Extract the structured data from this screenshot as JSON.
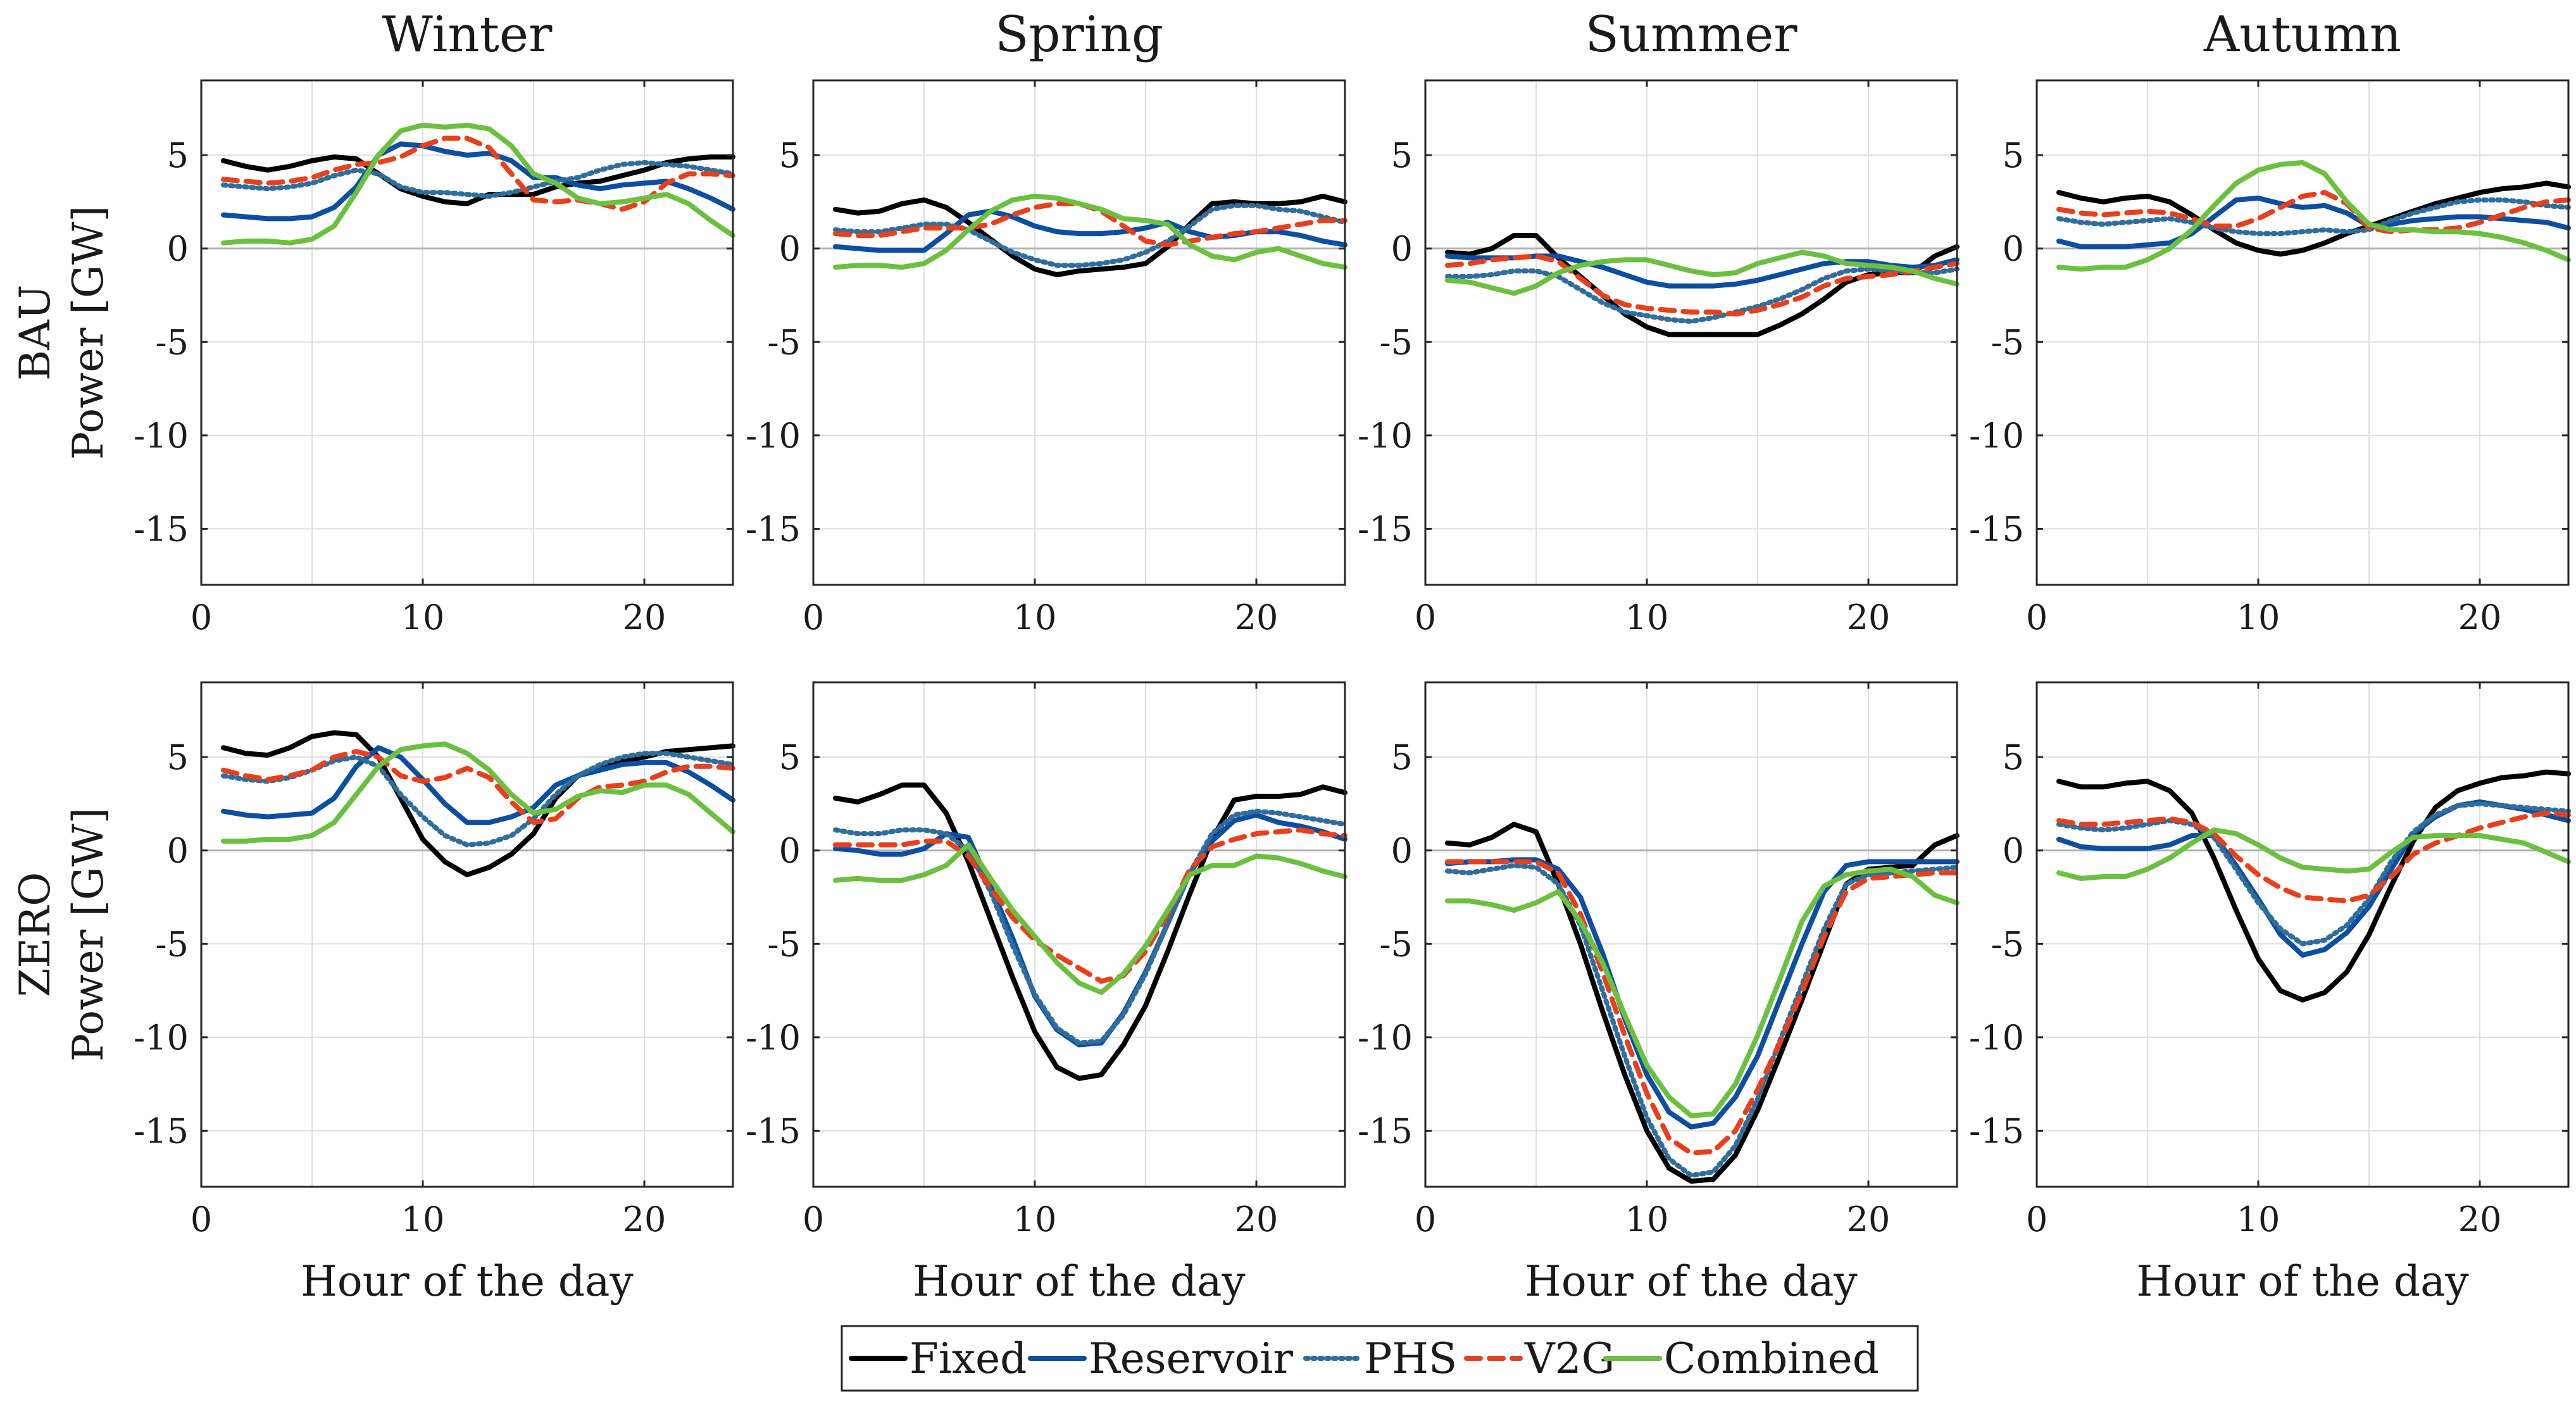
{
  "legend": {
    "items": [
      {
        "name": "Fixed",
        "color": "#000000",
        "style": "solid"
      },
      {
        "name": "Reservoir",
        "color": "#0b4ea2",
        "style": "solid"
      },
      {
        "name": "PHS",
        "color": "#2f6e9c",
        "style": "dotted"
      },
      {
        "name": "V2G",
        "color": "#e8401c",
        "style": "dashed"
      },
      {
        "name": "Combined",
        "color": "#6cc040",
        "style": "solid"
      }
    ]
  },
  "chart_data": {
    "type": "line",
    "seasons": [
      "Winter",
      "Spring",
      "Summer",
      "Autumn"
    ],
    "rows": [
      "BAU",
      "ZERO"
    ],
    "ylabel": "Power [GW]",
    "xlabel": "Hour of the day",
    "xlim": [
      0,
      24
    ],
    "ylim": [
      -18,
      9
    ],
    "xticks": [
      0,
      10,
      20
    ],
    "yticks": [
      5,
      0,
      -5,
      -10,
      -15
    ],
    "series_names": [
      "Fixed",
      "Reservoir",
      "PHS",
      "V2G",
      "Combined"
    ],
    "x": [
      1,
      2,
      3,
      4,
      5,
      6,
      7,
      8,
      9,
      10,
      11,
      12,
      13,
      14,
      15,
      16,
      17,
      18,
      19,
      20,
      21,
      22,
      23,
      24
    ],
    "panels": [
      {
        "row": "BAU",
        "season": "Winter",
        "series": [
          [
            4.7,
            4.4,
            4.2,
            4.4,
            4.7,
            4.9,
            4.8,
            4.0,
            3.2,
            2.8,
            2.5,
            2.4,
            2.9,
            2.9,
            2.9,
            3.3,
            3.5,
            3.6,
            3.9,
            4.2,
            4.6,
            4.8,
            4.9,
            4.9
          ],
          [
            1.8,
            1.7,
            1.6,
            1.6,
            1.7,
            2.2,
            3.3,
            5.0,
            5.6,
            5.5,
            5.2,
            5.0,
            5.1,
            4.7,
            3.8,
            3.8,
            3.4,
            3.2,
            3.4,
            3.5,
            3.6,
            3.2,
            2.7,
            2.1
          ],
          [
            3.4,
            3.3,
            3.2,
            3.3,
            3.5,
            3.9,
            4.2,
            4.0,
            3.3,
            3.0,
            3.0,
            2.9,
            2.8,
            3.0,
            3.3,
            3.6,
            3.8,
            4.2,
            4.5,
            4.6,
            4.5,
            4.4,
            4.2,
            4.0
          ],
          [
            3.7,
            3.6,
            3.5,
            3.6,
            3.8,
            4.2,
            4.5,
            4.6,
            4.9,
            5.5,
            5.9,
            5.9,
            5.4,
            4.0,
            2.6,
            2.5,
            2.6,
            2.4,
            2.1,
            2.5,
            3.5,
            4.0,
            4.0,
            3.9
          ],
          [
            0.3,
            0.4,
            0.4,
            0.3,
            0.5,
            1.2,
            3.0,
            5.0,
            6.3,
            6.6,
            6.5,
            6.6,
            6.4,
            5.5,
            4.0,
            3.5,
            2.7,
            2.4,
            2.5,
            2.7,
            2.9,
            2.4,
            1.5,
            0.7
          ]
        ]
      },
      {
        "row": "BAU",
        "season": "Spring",
        "series": [
          [
            2.1,
            1.9,
            2.0,
            2.4,
            2.6,
            2.2,
            1.4,
            0.5,
            -0.4,
            -1.1,
            -1.4,
            -1.2,
            -1.1,
            -1.0,
            -0.8,
            0.1,
            1.3,
            2.4,
            2.5,
            2.4,
            2.4,
            2.5,
            2.8,
            2.5
          ],
          [
            0.1,
            0.0,
            -0.1,
            -0.1,
            -0.1,
            0.8,
            1.8,
            2.0,
            1.7,
            1.2,
            0.9,
            0.8,
            0.8,
            0.9,
            1.1,
            1.4,
            0.9,
            0.6,
            0.7,
            0.9,
            0.9,
            0.7,
            0.4,
            0.2
          ],
          [
            1.0,
            0.9,
            0.9,
            1.1,
            1.3,
            1.3,
            1.0,
            0.4,
            -0.2,
            -0.6,
            -0.9,
            -0.9,
            -0.8,
            -0.6,
            -0.2,
            0.4,
            1.2,
            2.1,
            2.3,
            2.3,
            2.1,
            2.0,
            1.7,
            1.4
          ],
          [
            0.8,
            0.7,
            0.7,
            0.9,
            1.1,
            1.1,
            1.1,
            1.3,
            1.8,
            2.2,
            2.4,
            2.4,
            2.0,
            1.2,
            0.4,
            0.2,
            0.4,
            0.6,
            0.8,
            0.9,
            1.1,
            1.3,
            1.5,
            1.5
          ],
          [
            -1.0,
            -0.9,
            -0.9,
            -1.0,
            -0.8,
            -0.1,
            1.0,
            2.0,
            2.6,
            2.8,
            2.7,
            2.4,
            2.1,
            1.6,
            1.5,
            1.3,
            0.2,
            -0.4,
            -0.6,
            -0.2,
            0.0,
            -0.4,
            -0.8,
            -1.0
          ]
        ]
      },
      {
        "row": "BAU",
        "season": "Summer",
        "series": [
          [
            -0.2,
            -0.3,
            0.0,
            0.7,
            0.7,
            -0.5,
            -1.5,
            -2.5,
            -3.5,
            -4.2,
            -4.6,
            -4.6,
            -4.6,
            -4.6,
            -4.6,
            -4.1,
            -3.5,
            -2.7,
            -1.8,
            -1.4,
            -1.3,
            -1.3,
            -0.4,
            0.1
          ],
          [
            -0.4,
            -0.5,
            -0.5,
            -0.5,
            -0.4,
            -0.4,
            -0.7,
            -1.0,
            -1.4,
            -1.8,
            -2.0,
            -2.0,
            -2.0,
            -1.9,
            -1.7,
            -1.4,
            -1.1,
            -0.8,
            -0.7,
            -0.7,
            -0.9,
            -1.0,
            -0.9,
            -0.6
          ],
          [
            -1.5,
            -1.5,
            -1.4,
            -1.2,
            -1.2,
            -1.5,
            -2.2,
            -2.9,
            -3.4,
            -3.6,
            -3.8,
            -3.9,
            -3.7,
            -3.4,
            -3.1,
            -2.7,
            -2.2,
            -1.6,
            -1.2,
            -1.1,
            -1.2,
            -1.3,
            -1.3,
            -1.1
          ],
          [
            -0.9,
            -0.8,
            -0.6,
            -0.5,
            -0.4,
            -0.7,
            -1.6,
            -2.5,
            -3.0,
            -3.2,
            -3.3,
            -3.4,
            -3.4,
            -3.5,
            -3.3,
            -3.0,
            -2.6,
            -2.0,
            -1.6,
            -1.5,
            -1.4,
            -1.2,
            -1.0,
            -0.8
          ],
          [
            -1.7,
            -1.8,
            -2.1,
            -2.4,
            -2.0,
            -1.3,
            -0.9,
            -0.7,
            -0.6,
            -0.6,
            -0.9,
            -1.2,
            -1.4,
            -1.3,
            -0.8,
            -0.5,
            -0.2,
            -0.4,
            -0.8,
            -0.9,
            -1.0,
            -1.2,
            -1.6,
            -1.9
          ]
        ]
      },
      {
        "row": "BAU",
        "season": "Autumn",
        "series": [
          [
            3.0,
            2.7,
            2.5,
            2.7,
            2.8,
            2.5,
            1.8,
            1.0,
            0.3,
            -0.1,
            -0.3,
            -0.1,
            0.3,
            0.8,
            1.2,
            1.6,
            2.0,
            2.4,
            2.7,
            3.0,
            3.2,
            3.3,
            3.5,
            3.3
          ],
          [
            0.4,
            0.1,
            0.1,
            0.1,
            0.2,
            0.3,
            0.8,
            1.7,
            2.6,
            2.7,
            2.4,
            2.2,
            2.3,
            1.9,
            1.2,
            1.3,
            1.5,
            1.6,
            1.7,
            1.7,
            1.6,
            1.5,
            1.4,
            1.1
          ],
          [
            1.6,
            1.4,
            1.3,
            1.4,
            1.5,
            1.6,
            1.4,
            1.1,
            0.9,
            0.8,
            0.8,
            0.9,
            1.0,
            0.9,
            1.0,
            1.5,
            1.9,
            2.2,
            2.5,
            2.6,
            2.6,
            2.5,
            2.3,
            2.2
          ],
          [
            2.1,
            1.9,
            1.8,
            1.9,
            2.0,
            1.9,
            1.6,
            1.2,
            1.2,
            1.6,
            2.2,
            2.8,
            3.0,
            2.4,
            1.1,
            0.9,
            1.0,
            1.0,
            1.1,
            1.4,
            1.8,
            2.2,
            2.5,
            2.6
          ],
          [
            -1.0,
            -1.1,
            -1.0,
            -1.0,
            -0.6,
            0.0,
            1.0,
            2.3,
            3.5,
            4.2,
            4.5,
            4.6,
            4.0,
            2.5,
            1.3,
            1.0,
            1.0,
            0.9,
            0.9,
            0.8,
            0.6,
            0.3,
            -0.1,
            -0.6
          ]
        ]
      },
      {
        "row": "ZERO",
        "season": "Winter",
        "series": [
          [
            5.5,
            5.2,
            5.1,
            5.5,
            6.1,
            6.3,
            6.2,
            5.0,
            2.8,
            0.6,
            -0.6,
            -1.3,
            -0.9,
            -0.2,
            0.9,
            2.8,
            4.0,
            4.5,
            4.8,
            5.0,
            5.3,
            5.4,
            5.5,
            5.6
          ],
          [
            2.1,
            1.9,
            1.8,
            1.9,
            2.0,
            2.8,
            4.5,
            5.5,
            5.0,
            3.8,
            2.5,
            1.5,
            1.5,
            1.8,
            2.3,
            3.5,
            4.0,
            4.3,
            4.6,
            4.7,
            4.7,
            4.2,
            3.5,
            2.7
          ],
          [
            4.0,
            3.8,
            3.7,
            3.9,
            4.3,
            4.8,
            5.0,
            4.5,
            3.0,
            1.8,
            0.8,
            0.3,
            0.4,
            0.8,
            1.7,
            3.0,
            4.0,
            4.6,
            5.0,
            5.2,
            5.2,
            5.0,
            4.8,
            4.6
          ],
          [
            4.3,
            4.0,
            3.8,
            4.0,
            4.3,
            5.0,
            5.3,
            5.0,
            4.0,
            3.7,
            3.9,
            4.4,
            3.9,
            2.6,
            1.5,
            1.7,
            2.8,
            3.4,
            3.5,
            3.7,
            4.2,
            4.5,
            4.5,
            4.4
          ],
          [
            0.5,
            0.5,
            0.6,
            0.6,
            0.8,
            1.5,
            3.0,
            4.5,
            5.4,
            5.6,
            5.7,
            5.2,
            4.3,
            3.0,
            2.0,
            2.2,
            2.9,
            3.2,
            3.1,
            3.5,
            3.5,
            3.0,
            2.0,
            1.0
          ]
        ]
      },
      {
        "row": "ZERO",
        "season": "Spring",
        "series": [
          [
            2.8,
            2.6,
            3.0,
            3.5,
            3.5,
            2.0,
            -0.6,
            -3.7,
            -6.8,
            -9.7,
            -11.6,
            -12.2,
            -12.0,
            -10.4,
            -8.3,
            -5.4,
            -2.3,
            0.6,
            2.7,
            2.9,
            2.9,
            3.0,
            3.4,
            3.1
          ],
          [
            0.1,
            0.0,
            -0.2,
            -0.2,
            0.1,
            0.9,
            0.7,
            -1.9,
            -4.7,
            -7.8,
            -9.6,
            -10.4,
            -10.3,
            -8.7,
            -6.5,
            -3.9,
            -1.2,
            0.5,
            1.6,
            1.9,
            1.5,
            1.3,
            1.0,
            0.6
          ],
          [
            1.1,
            0.9,
            0.9,
            1.1,
            1.1,
            0.9,
            0.0,
            -2.2,
            -5.1,
            -7.7,
            -9.5,
            -10.3,
            -10.2,
            -8.8,
            -6.6,
            -3.9,
            -1.2,
            0.9,
            1.9,
            2.1,
            2.0,
            1.8,
            1.6,
            1.4
          ],
          [
            0.3,
            0.3,
            0.3,
            0.3,
            0.5,
            0.5,
            -0.3,
            -2.0,
            -3.6,
            -4.8,
            -5.6,
            -6.3,
            -7.0,
            -6.7,
            -5.4,
            -3.4,
            -1.0,
            0.2,
            0.6,
            0.9,
            1.0,
            1.1,
            0.9,
            0.8
          ],
          [
            -1.6,
            -1.5,
            -1.6,
            -1.6,
            -1.3,
            -0.8,
            0.3,
            -1.5,
            -3.2,
            -4.6,
            -6.0,
            -7.1,
            -7.6,
            -6.6,
            -5.1,
            -3.2,
            -1.3,
            -0.8,
            -0.8,
            -0.3,
            -0.4,
            -0.7,
            -1.1,
            -1.4
          ]
        ]
      },
      {
        "row": "ZERO",
        "season": "Summer",
        "series": [
          [
            0.4,
            0.3,
            0.7,
            1.4,
            1.0,
            -1.8,
            -5.0,
            -8.6,
            -12.0,
            -15.0,
            -17.0,
            -17.7,
            -17.6,
            -16.3,
            -13.9,
            -11.0,
            -8.0,
            -4.9,
            -1.8,
            -1.0,
            -0.9,
            -0.8,
            0.3,
            0.8
          ],
          [
            -0.7,
            -0.6,
            -0.6,
            -0.5,
            -0.5,
            -1.0,
            -2.5,
            -5.5,
            -9.0,
            -12.0,
            -14.0,
            -14.8,
            -14.6,
            -13.2,
            -11.0,
            -8.0,
            -5.0,
            -2.2,
            -0.8,
            -0.6,
            -0.6,
            -0.6,
            -0.6,
            -0.6
          ],
          [
            -1.1,
            -1.2,
            -1.0,
            -0.8,
            -0.9,
            -1.8,
            -4.0,
            -7.5,
            -11.0,
            -14.3,
            -16.5,
            -17.4,
            -17.2,
            -15.8,
            -13.3,
            -10.2,
            -7.2,
            -4.2,
            -1.8,
            -1.3,
            -1.2,
            -1.1,
            -1.0,
            -0.9
          ],
          [
            -0.6,
            -0.6,
            -0.6,
            -0.6,
            -0.6,
            -1.2,
            -3.4,
            -6.5,
            -9.9,
            -13.0,
            -15.4,
            -16.2,
            -16.1,
            -15.0,
            -12.8,
            -10.3,
            -7.6,
            -4.6,
            -2.2,
            -1.5,
            -1.4,
            -1.3,
            -1.2,
            -1.2
          ],
          [
            -2.7,
            -2.7,
            -2.9,
            -3.2,
            -2.8,
            -2.2,
            -3.8,
            -6.0,
            -8.8,
            -11.5,
            -13.2,
            -14.2,
            -14.1,
            -12.5,
            -9.9,
            -6.9,
            -3.8,
            -1.9,
            -1.3,
            -1.1,
            -1.0,
            -1.4,
            -2.4,
            -2.8
          ]
        ]
      },
      {
        "row": "ZERO",
        "season": "Autumn",
        "series": [
          [
            3.7,
            3.4,
            3.4,
            3.6,
            3.7,
            3.2,
            2.0,
            -0.4,
            -3.2,
            -5.8,
            -7.5,
            -8.0,
            -7.6,
            -6.5,
            -4.5,
            -1.9,
            0.5,
            2.3,
            3.2,
            3.6,
            3.9,
            4.0,
            4.2,
            4.1
          ],
          [
            0.6,
            0.2,
            0.1,
            0.1,
            0.1,
            0.3,
            0.8,
            0.8,
            -0.8,
            -2.6,
            -4.5,
            -5.6,
            -5.3,
            -4.4,
            -3.0,
            -1.0,
            0.9,
            1.8,
            2.4,
            2.6,
            2.4,
            2.2,
            1.9,
            1.6
          ],
          [
            1.4,
            1.2,
            1.1,
            1.2,
            1.4,
            1.6,
            1.4,
            0.7,
            -1.0,
            -2.8,
            -4.2,
            -5.0,
            -4.8,
            -4.0,
            -2.6,
            -0.6,
            1.0,
            1.9,
            2.4,
            2.5,
            2.4,
            2.3,
            2.2,
            2.1
          ],
          [
            1.6,
            1.4,
            1.4,
            1.5,
            1.6,
            1.7,
            1.5,
            0.9,
            -0.3,
            -1.3,
            -2.0,
            -2.5,
            -2.6,
            -2.7,
            -2.4,
            -1.4,
            -0.2,
            0.4,
            0.8,
            1.2,
            1.5,
            1.8,
            2.0,
            1.9
          ],
          [
            -1.2,
            -1.5,
            -1.4,
            -1.4,
            -1.0,
            -0.4,
            0.4,
            1.1,
            0.9,
            0.3,
            -0.4,
            -0.9,
            -1.0,
            -1.1,
            -1.0,
            -0.1,
            0.7,
            0.8,
            0.8,
            0.8,
            0.6,
            0.4,
            -0.1,
            -0.6
          ]
        ]
      }
    ]
  }
}
